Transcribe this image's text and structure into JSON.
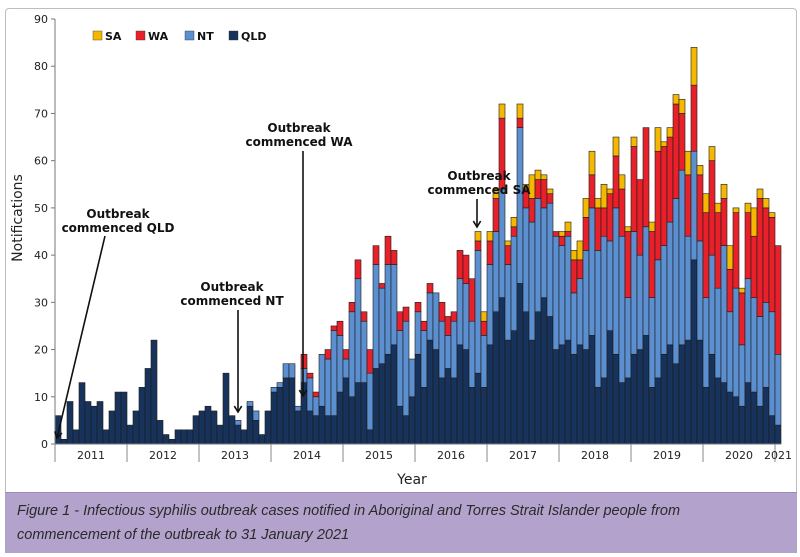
{
  "caption": "Figure 1 - Infectious syphilis outbreak cases notified in Aboriginal and Torres Strait Islander people from commencement of the outbreak to 31 January 2021",
  "colors": {
    "SA": "#f5b800",
    "WA": "#e8202a",
    "NT": "#5b8fcf",
    "QLD": "#17335c",
    "caption_bg": "#b3a3cc"
  },
  "annotations": [
    {
      "line1": "Outbreak",
      "line2": "commenced QLD",
      "month": "2011-01"
    },
    {
      "line1": "Outbreak",
      "line2": "commenced NT",
      "month": "2013-07"
    },
    {
      "line1": "Outbreak",
      "line2": "commenced WA",
      "month": "2014-06"
    },
    {
      "line1": "Outbreak",
      "line2": "commenced SA",
      "month": "2016-11"
    }
  ],
  "chart_data": {
    "type": "bar",
    "stacked": true,
    "title": "",
    "xlabel": "Year",
    "ylabel": "Notifications",
    "ylim": [
      0,
      90
    ],
    "yticks": [
      0,
      10,
      20,
      30,
      40,
      50,
      60,
      70,
      80,
      90
    ],
    "xtick_labels": [
      "2011",
      "2012",
      "2013",
      "2014",
      "2015",
      "2016",
      "2017",
      "2018",
      "2019",
      "2020",
      "2021"
    ],
    "grid": false,
    "legend": {
      "placement": "top-left",
      "order": [
        "SA",
        "WA",
        "NT",
        "QLD"
      ]
    },
    "categories": [
      "2011-01",
      "2011-02",
      "2011-03",
      "2011-04",
      "2011-05",
      "2011-06",
      "2011-07",
      "2011-08",
      "2011-09",
      "2011-10",
      "2011-11",
      "2011-12",
      "2012-01",
      "2012-02",
      "2012-03",
      "2012-04",
      "2012-05",
      "2012-06",
      "2012-07",
      "2012-08",
      "2012-09",
      "2012-10",
      "2012-11",
      "2012-12",
      "2013-01",
      "2013-02",
      "2013-03",
      "2013-04",
      "2013-05",
      "2013-06",
      "2013-07",
      "2013-08",
      "2013-09",
      "2013-10",
      "2013-11",
      "2013-12",
      "2014-01",
      "2014-02",
      "2014-03",
      "2014-04",
      "2014-05",
      "2014-06",
      "2014-07",
      "2014-08",
      "2014-09",
      "2014-10",
      "2014-11",
      "2014-12",
      "2015-01",
      "2015-02",
      "2015-03",
      "2015-04",
      "2015-05",
      "2015-06",
      "2015-07",
      "2015-08",
      "2015-09",
      "2015-10",
      "2015-11",
      "2015-12",
      "2016-01",
      "2016-02",
      "2016-03",
      "2016-04",
      "2016-05",
      "2016-06",
      "2016-07",
      "2016-08",
      "2016-09",
      "2016-10",
      "2016-11",
      "2016-12",
      "2017-01",
      "2017-02",
      "2017-03",
      "2017-04",
      "2017-05",
      "2017-06",
      "2017-07",
      "2017-08",
      "2017-09",
      "2017-10",
      "2017-11",
      "2017-12",
      "2018-01",
      "2018-02",
      "2018-03",
      "2018-04",
      "2018-05",
      "2018-06",
      "2018-07",
      "2018-08",
      "2018-09",
      "2018-10",
      "2018-11",
      "2018-12",
      "2019-01",
      "2019-02",
      "2019-03",
      "2019-04",
      "2019-05",
      "2019-06",
      "2019-07",
      "2019-08",
      "2019-09",
      "2019-10",
      "2019-11",
      "2019-12",
      "2020-01",
      "2020-02",
      "2020-03",
      "2020-04",
      "2020-05",
      "2020-06",
      "2020-07",
      "2020-08",
      "2020-09",
      "2020-10",
      "2020-11",
      "2020-12",
      "2021-01"
    ],
    "series": [
      {
        "name": "QLD",
        "values": [
          6,
          1,
          9,
          3,
          13,
          9,
          8,
          9,
          3,
          7,
          11,
          11,
          4,
          7,
          12,
          16,
          22,
          5,
          2,
          1,
          3,
          3,
          3,
          6,
          7,
          8,
          7,
          4,
          15,
          6,
          4,
          3,
          8,
          5,
          2,
          7,
          11,
          12,
          14,
          14,
          7,
          13,
          7,
          6,
          8,
          6,
          6,
          11,
          14,
          10,
          13,
          13,
          3,
          16,
          17,
          19,
          21,
          8,
          6,
          10,
          19,
          12,
          22,
          20,
          14,
          16,
          14,
          21,
          20,
          12,
          15,
          12,
          21,
          28,
          31,
          22,
          24,
          34,
          28,
          22,
          28,
          31,
          27,
          20,
          21,
          22,
          19,
          21,
          20,
          23,
          12,
          14,
          24,
          19,
          13,
          14,
          19,
          20,
          23,
          12,
          14,
          19,
          21,
          17,
          21,
          22,
          39,
          22,
          12,
          19,
          14,
          13,
          11,
          10,
          8,
          13,
          11,
          8,
          12,
          6,
          4
        ]
      },
      {
        "name": "NT",
        "values": [
          0,
          0,
          0,
          0,
          0,
          0,
          0,
          0,
          0,
          0,
          0,
          0,
          0,
          0,
          0,
          0,
          0,
          0,
          0,
          0,
          0,
          0,
          0,
          0,
          0,
          0,
          0,
          0,
          0,
          0,
          1,
          0,
          1,
          2,
          0,
          0,
          1,
          1,
          3,
          3,
          1,
          3,
          7,
          4,
          11,
          12,
          18,
          12,
          4,
          18,
          22,
          13,
          12,
          22,
          16,
          19,
          17,
          16,
          20,
          8,
          9,
          12,
          10,
          12,
          12,
          7,
          12,
          14,
          14,
          14,
          26,
          11,
          17,
          17,
          23,
          16,
          20,
          33,
          22,
          25,
          24,
          19,
          24,
          24,
          21,
          22,
          13,
          14,
          21,
          27,
          29,
          30,
          19,
          31,
          31,
          17,
          26,
          20,
          23,
          19,
          25,
          23,
          26,
          35,
          37,
          22,
          23,
          21,
          19,
          21,
          19,
          29,
          17,
          23,
          13,
          22,
          20,
          19,
          18,
          22,
          15
        ]
      },
      {
        "name": "WA",
        "values": [
          0,
          0,
          0,
          0,
          0,
          0,
          0,
          0,
          0,
          0,
          0,
          0,
          0,
          0,
          0,
          0,
          0,
          0,
          0,
          0,
          0,
          0,
          0,
          0,
          0,
          0,
          0,
          0,
          0,
          0,
          0,
          0,
          0,
          0,
          0,
          0,
          0,
          0,
          0,
          0,
          0,
          3,
          1,
          1,
          0,
          2,
          1,
          3,
          2,
          2,
          4,
          2,
          5,
          4,
          1,
          6,
          3,
          4,
          3,
          0,
          2,
          2,
          2,
          0,
          4,
          4,
          2,
          6,
          6,
          9,
          2,
          3,
          5,
          7,
          15,
          4,
          2,
          2,
          4,
          5,
          4,
          6,
          2,
          1,
          2,
          1,
          7,
          4,
          7,
          7,
          9,
          6,
          10,
          11,
          10,
          14,
          18,
          16,
          21,
          14,
          23,
          21,
          18,
          20,
          12,
          13,
          14,
          14,
          18,
          20,
          16,
          10,
          9,
          16,
          11,
          14,
          13,
          25,
          20,
          20,
          23
        ]
      },
      {
        "name": "SA",
        "values": [
          0,
          0,
          0,
          0,
          0,
          0,
          0,
          0,
          0,
          0,
          0,
          0,
          0,
          0,
          0,
          0,
          0,
          0,
          0,
          0,
          0,
          0,
          0,
          0,
          0,
          0,
          0,
          0,
          0,
          0,
          0,
          0,
          0,
          0,
          0,
          0,
          0,
          0,
          0,
          0,
          0,
          0,
          0,
          0,
          0,
          0,
          0,
          0,
          0,
          0,
          0,
          0,
          0,
          0,
          0,
          0,
          0,
          0,
          0,
          0,
          0,
          0,
          0,
          0,
          0,
          0,
          0,
          0,
          0,
          0,
          2,
          2,
          2,
          2,
          3,
          1,
          2,
          3,
          1,
          5,
          2,
          1,
          1,
          0,
          1,
          2,
          2,
          4,
          4,
          5,
          2,
          5,
          1,
          4,
          3,
          1,
          2,
          0,
          0,
          2,
          5,
          1,
          2,
          2,
          3,
          5,
          8,
          2,
          4,
          3,
          2,
          3,
          5,
          1,
          1,
          2,
          6,
          2,
          2,
          1,
          0
        ]
      }
    ]
  }
}
